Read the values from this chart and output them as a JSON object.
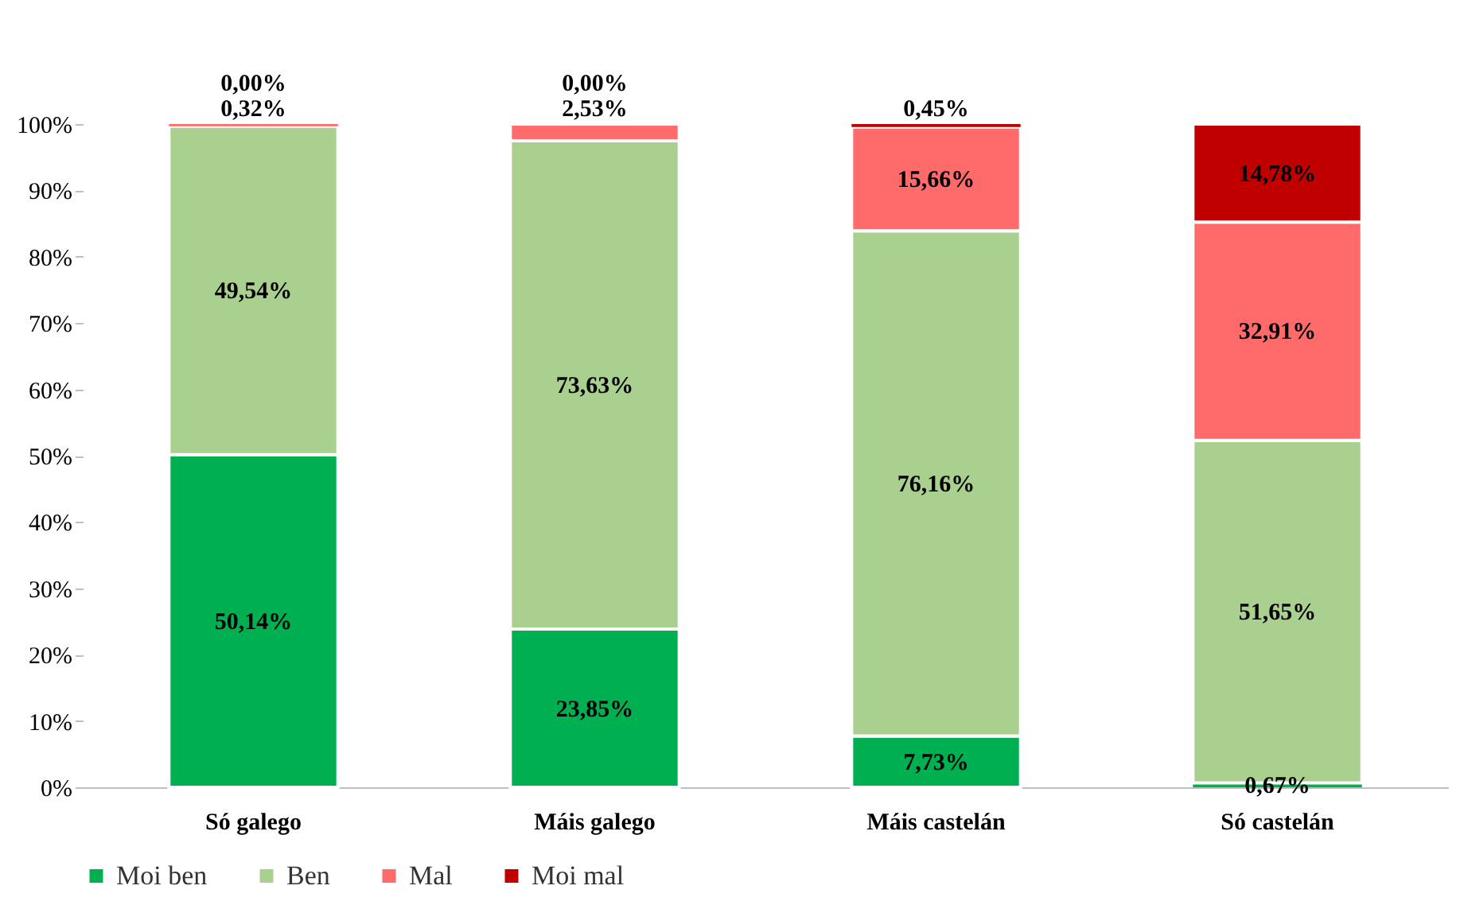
{
  "chart_data": {
    "type": "bar",
    "stacked": true,
    "categories": [
      "Só galego",
      "Máis galego",
      "Máis castelán",
      "Só castelán"
    ],
    "ylim": [
      0,
      100
    ],
    "yticks": [
      {
        "value": 0,
        "label": "0%"
      },
      {
        "value": 10,
        "label": "10%"
      },
      {
        "value": 20,
        "label": "20%"
      },
      {
        "value": 30,
        "label": "30%"
      },
      {
        "value": 40,
        "label": "40%"
      },
      {
        "value": 50,
        "label": "50%"
      },
      {
        "value": 60,
        "label": "60%"
      },
      {
        "value": 70,
        "label": "70%"
      },
      {
        "value": 80,
        "label": "80%"
      },
      {
        "value": 90,
        "label": "90%"
      },
      {
        "value": 100,
        "label": "100%"
      }
    ],
    "legend": "bottom",
    "series": [
      {
        "name": "Moi ben",
        "color": "#00b050",
        "values": [
          50.14,
          23.85,
          7.73,
          0.67
        ],
        "value_labels": [
          "50,14%",
          "23,85%",
          "7,73%",
          "0,67%"
        ]
      },
      {
        "name": "Ben",
        "color": "#a9d08e",
        "values": [
          49.54,
          73.63,
          76.16,
          51.65
        ],
        "value_labels": [
          "49,54%",
          "73,63%",
          "76,16%",
          "51,65%"
        ]
      },
      {
        "name": "Mal",
        "color": "#ff6b6b",
        "values": [
          0.32,
          2.53,
          15.66,
          32.91
        ],
        "value_labels": [
          "0,32%",
          "2,53%",
          "15,66%",
          "32,91%"
        ]
      },
      {
        "name": "Moi mal",
        "color": "#c00000",
        "values": [
          0.0,
          0.0,
          0.45,
          14.78
        ],
        "value_labels": [
          "0,00%",
          "0,00%",
          "0,45%",
          "14,78%"
        ]
      }
    ]
  }
}
